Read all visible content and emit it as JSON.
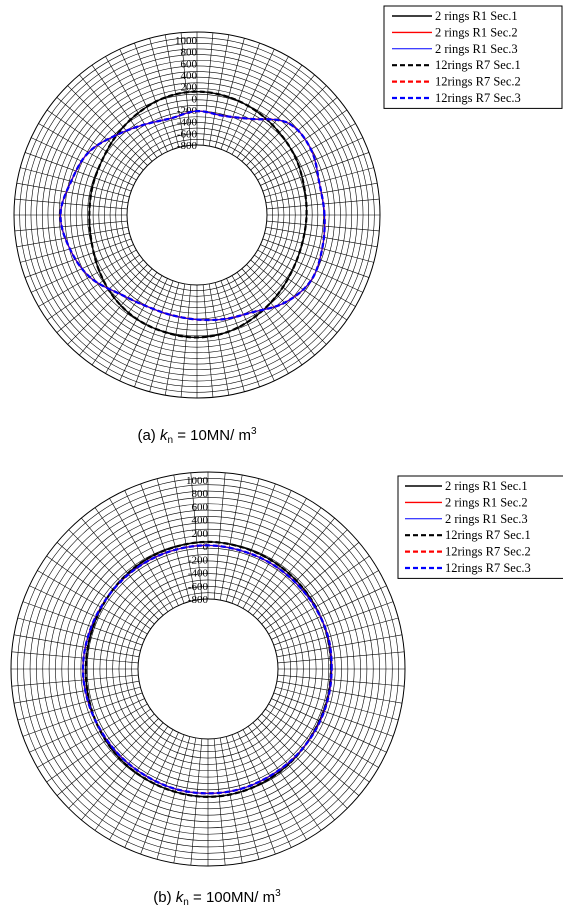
{
  "chart_data": [
    {
      "type": "polar-line",
      "caption": {
        "prefix": "(a) ",
        "k": "k",
        "sub": "n",
        "value": " = 10MN/ m",
        "sup": "3"
      },
      "radial_axis": {
        "labels_upper": [
          "1000",
          "800",
          "600",
          "400",
          "200",
          "0"
        ],
        "labels_lower": [
          "-200",
          "-400",
          "-600",
          "-800"
        ],
        "rings": [
          -800,
          -600,
          -400,
          -200,
          0,
          200,
          400,
          600,
          800,
          1000
        ],
        "inner_value": -800,
        "outer_value": 1000
      },
      "spokes": 72,
      "series": [
        {
          "name": "2 rings R1 Sec.1",
          "color": "#000000",
          "dash": false,
          "width": 1.4,
          "theta_deg": [
            0,
            15,
            30,
            45,
            60,
            75,
            90,
            105,
            120,
            135,
            150,
            165,
            180,
            195,
            210,
            225,
            240,
            255,
            270,
            285,
            300,
            315,
            330,
            345
          ],
          "r": [
            -170,
            -150,
            -100,
            -60,
            -10,
            30,
            50,
            25,
            -40,
            -110,
            -170,
            -190,
            -200,
            -180,
            -120,
            -50,
            0,
            20,
            35,
            10,
            -50,
            -110,
            -160,
            -180
          ]
        },
        {
          "name": "2 rings R1 Sec.2",
          "color": "#ff0000",
          "dash": false,
          "width": 1.4,
          "theta_deg": [
            0,
            15,
            30,
            45,
            60,
            75,
            90,
            105,
            120,
            135,
            150,
            165,
            180,
            195,
            210,
            225,
            240,
            255,
            270,
            285,
            300,
            315,
            330,
            345
          ],
          "r": [
            115,
            100,
            180,
            150,
            -150,
            -280,
            -260,
            -320,
            -250,
            -110,
            80,
            160,
            260,
            180,
            60,
            -150,
            -250,
            -270,
            -250,
            -200,
            -130,
            60,
            180,
            150
          ]
        },
        {
          "name": "2 rings R1 Sec.3",
          "color": "#0000ff",
          "dash": false,
          "width": 1,
          "theta_deg": [
            0,
            15,
            30,
            45,
            60,
            75,
            90,
            105,
            120,
            135,
            150,
            165,
            180,
            195,
            210,
            225,
            240,
            255,
            270,
            285,
            300,
            315,
            330,
            345
          ],
          "r": [
            115,
            100,
            180,
            150,
            -150,
            -280,
            -260,
            -320,
            -250,
            -110,
            80,
            160,
            260,
            180,
            60,
            -150,
            -250,
            -270,
            -250,
            -200,
            -130,
            60,
            180,
            150
          ]
        },
        {
          "name": "12rings R7 Sec.1",
          "color": "#000000",
          "dash": true,
          "width": 2.2,
          "theta_deg": [
            0,
            15,
            30,
            45,
            60,
            75,
            90,
            105,
            120,
            135,
            150,
            165,
            180,
            195,
            210,
            225,
            240,
            255,
            270,
            285,
            300,
            315,
            330,
            345
          ],
          "r": [
            -170,
            -150,
            -100,
            -60,
            -10,
            30,
            50,
            25,
            -40,
            -110,
            -170,
            -190,
            -200,
            -180,
            -120,
            -50,
            0,
            20,
            35,
            10,
            -50,
            -110,
            -160,
            -180
          ]
        },
        {
          "name": "12rings R7 Sec.2",
          "color": "#ff0000",
          "dash": true,
          "width": 2.2,
          "theta_deg": [
            0,
            15,
            30,
            45,
            60,
            75,
            90,
            105,
            120,
            135,
            150,
            165,
            180,
            195,
            210,
            225,
            240,
            255,
            270,
            285,
            300,
            315,
            330,
            345
          ],
          "r": [
            115,
            100,
            180,
            150,
            -150,
            -280,
            -260,
            -320,
            -250,
            -110,
            80,
            160,
            260,
            180,
            60,
            -150,
            -250,
            -270,
            -250,
            -200,
            -130,
            60,
            180,
            150
          ]
        },
        {
          "name": "12rings R7 Sec.3",
          "color": "#0000ff",
          "dash": true,
          "width": 2.2,
          "theta_deg": [
            0,
            15,
            30,
            45,
            60,
            75,
            90,
            105,
            120,
            135,
            150,
            165,
            180,
            195,
            210,
            225,
            240,
            255,
            270,
            285,
            300,
            315,
            330,
            345
          ],
          "r": [
            115,
            100,
            180,
            150,
            -150,
            -280,
            -260,
            -320,
            -250,
            -110,
            80,
            160,
            260,
            180,
            60,
            -150,
            -250,
            -270,
            -250,
            -200,
            -130,
            60,
            180,
            150
          ]
        }
      ],
      "legend": "top-right"
    },
    {
      "type": "polar-line",
      "caption": {
        "prefix": "(b) ",
        "k": "k",
        "sub": "n",
        "value": " = 100MN/ m",
        "sup": "3"
      },
      "radial_axis": {
        "labels_upper": [
          "1000",
          "800",
          "600",
          "400",
          "200",
          "0"
        ],
        "labels_lower": [
          "-200",
          "-400",
          "-600",
          "-800"
        ],
        "rings": [
          -800,
          -600,
          -400,
          -200,
          0,
          200,
          400,
          600,
          800,
          1000
        ],
        "inner_value": -800,
        "outer_value": 1000
      },
      "spokes": 72,
      "series": [
        {
          "name": "2 rings R1 Sec.1",
          "color": "#000000",
          "dash": false,
          "width": 1.4,
          "theta_deg": [
            0,
            15,
            30,
            45,
            60,
            75,
            90,
            105,
            120,
            135,
            150,
            165,
            180,
            195,
            210,
            225,
            240,
            255,
            270,
            285,
            300,
            315,
            330,
            345
          ],
          "r": [
            -50,
            -40,
            -30,
            -20,
            -10,
            0,
            10,
            0,
            -10,
            -30,
            -50,
            -60,
            -60,
            -50,
            -30,
            -10,
            0,
            10,
            20,
            10,
            -10,
            -30,
            -50,
            -50
          ]
        },
        {
          "name": "2 rings R1 Sec.2",
          "color": "#ff0000",
          "dash": false,
          "width": 1.4,
          "theta_deg": [
            0,
            15,
            30,
            45,
            60,
            75,
            90,
            105,
            120,
            135,
            150,
            165,
            180,
            195,
            210,
            225,
            240,
            255,
            270,
            285,
            300,
            315,
            330,
            345
          ],
          "r": [
            -40,
            -30,
            -40,
            -50,
            -50,
            -50,
            -40,
            -40,
            -40,
            -40,
            -40,
            -30,
            -20,
            -30,
            -40,
            -40,
            -40,
            -30,
            -30,
            -30,
            -40,
            -40,
            -40,
            -40
          ]
        },
        {
          "name": "2 rings R1 Sec.3",
          "color": "#0000ff",
          "dash": false,
          "width": 1,
          "theta_deg": [
            0,
            15,
            30,
            45,
            60,
            75,
            90,
            105,
            120,
            135,
            150,
            165,
            180,
            195,
            210,
            225,
            240,
            255,
            270,
            285,
            300,
            315,
            330,
            345
          ],
          "r": [
            -40,
            -30,
            -40,
            -50,
            -50,
            -50,
            -40,
            -40,
            -40,
            -40,
            -40,
            -30,
            -20,
            -30,
            -40,
            -40,
            -40,
            -30,
            -30,
            -30,
            -40,
            -40,
            -40,
            -40
          ]
        },
        {
          "name": "12rings R7 Sec.1",
          "color": "#000000",
          "dash": true,
          "width": 2.2,
          "theta_deg": [
            0,
            15,
            30,
            45,
            60,
            75,
            90,
            105,
            120,
            135,
            150,
            165,
            180,
            195,
            210,
            225,
            240,
            255,
            270,
            285,
            300,
            315,
            330,
            345
          ],
          "r": [
            -50,
            -40,
            -30,
            -20,
            -10,
            0,
            10,
            0,
            -10,
            -30,
            -50,
            -60,
            -60,
            -50,
            -30,
            -10,
            0,
            10,
            20,
            10,
            -10,
            -30,
            -50,
            -50
          ]
        },
        {
          "name": "12rings R7 Sec.2",
          "color": "#ff0000",
          "dash": true,
          "width": 2.2,
          "theta_deg": [
            0,
            15,
            30,
            45,
            60,
            75,
            90,
            105,
            120,
            135,
            150,
            165,
            180,
            195,
            210,
            225,
            240,
            255,
            270,
            285,
            300,
            315,
            330,
            345
          ],
          "r": [
            -40,
            -30,
            -40,
            -50,
            -50,
            -50,
            -40,
            -40,
            -40,
            -40,
            -40,
            -30,
            -20,
            -30,
            -40,
            -40,
            -40,
            -30,
            -30,
            -30,
            -40,
            -40,
            -40,
            -40
          ]
        },
        {
          "name": "12rings R7 Sec.3",
          "color": "#0000ff",
          "dash": true,
          "width": 2.2,
          "theta_deg": [
            0,
            15,
            30,
            45,
            60,
            75,
            90,
            105,
            120,
            135,
            150,
            165,
            180,
            195,
            210,
            225,
            240,
            255,
            270,
            285,
            300,
            315,
            330,
            345
          ],
          "r": [
            -40,
            -30,
            -40,
            -50,
            -50,
            -50,
            -40,
            -40,
            -40,
            -40,
            -40,
            -30,
            -20,
            -30,
            -40,
            -40,
            -40,
            -30,
            -30,
            -30,
            -40,
            -40,
            -40,
            -40
          ]
        }
      ],
      "legend": "top-right"
    }
  ]
}
